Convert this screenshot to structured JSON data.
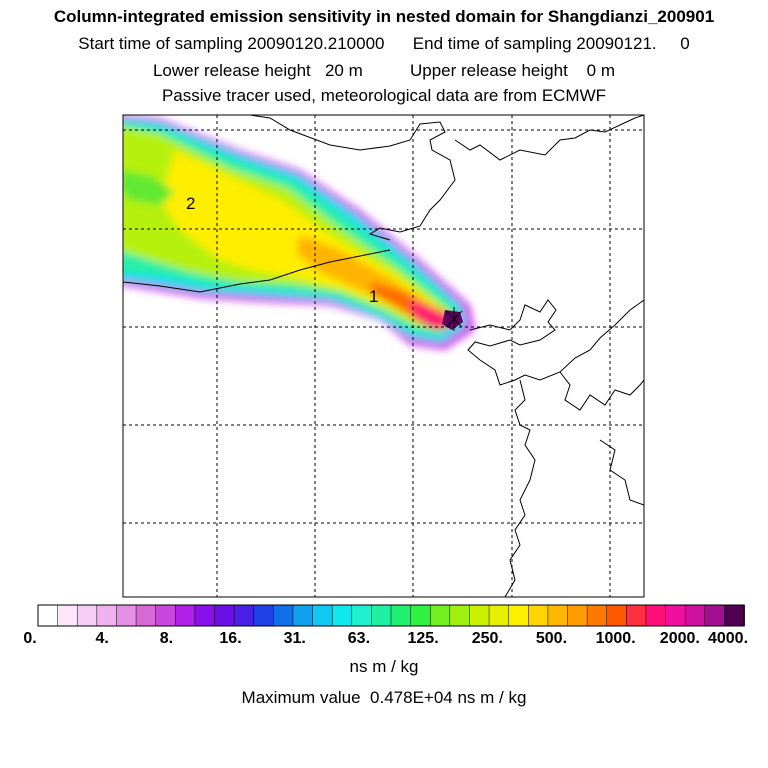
{
  "header": {
    "title": "Column-integrated emission sensitivity in nested domain for Shangdianzi_200901",
    "sampling": "Start time of sampling 20090120.210000      End time of sampling 20090121.     0",
    "release": "Lower release height   20 m          Upper release height    0 m",
    "tracer": "Passive tracer used, meteorological data are from ECMWF"
  },
  "map": {
    "labels": [
      {
        "text": "1",
        "position": "plume centre near release site"
      },
      {
        "text": "2",
        "position": "upwind plume maximum, northwest"
      }
    ],
    "gridlines": "dashed",
    "coastline_color": "#000000"
  },
  "colorbar": {
    "units": "ns m / kg",
    "tick_labels": [
      "0.",
      "4.",
      "8.",
      "16.",
      "31.",
      "63.",
      "125.",
      "250.",
      "500.",
      "1000.",
      "2000.",
      "4000."
    ],
    "colors": [
      "#ffffff",
      "#fbe6fb",
      "#f5cef5",
      "#eeb2ee",
      "#e58fe5",
      "#d86ad8",
      "#c845de",
      "#b020e8",
      "#8a10ea",
      "#6a10e6",
      "#4a20e6",
      "#2040e8",
      "#1070ea",
      "#10a0f0",
      "#10c8f4",
      "#10e8f0",
      "#20f0d0",
      "#20f0a0",
      "#20f070",
      "#30f040",
      "#70f020",
      "#a0f010",
      "#c8f000",
      "#e8f000",
      "#fff000",
      "#ffd400",
      "#ffb800",
      "#ff9c00",
      "#ff7800",
      "#ff5800",
      "#ff3040",
      "#ff1078",
      "#f010a0",
      "#d010a0",
      "#a01090",
      "#500050"
    ]
  },
  "maximum": "Maximum value  0.478E+04 ns m / kg"
}
